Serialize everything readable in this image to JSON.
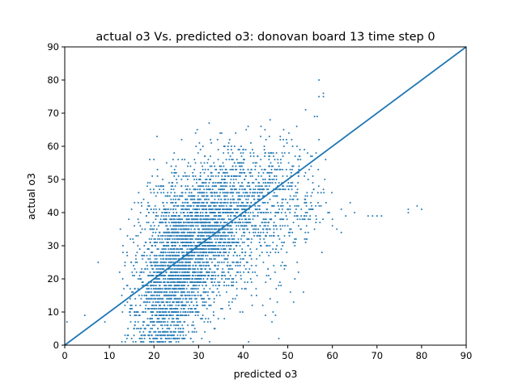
{
  "chart_data": {
    "type": "scatter",
    "title": "actual o3 Vs. predicted o3: donovan board 13 time step 0",
    "xlabel": "predicted o3",
    "ylabel": "actual o3",
    "xlim": [
      0,
      90
    ],
    "ylim": [
      0,
      90
    ],
    "xticks": [
      "0",
      "10",
      "20",
      "30",
      "40",
      "50",
      "60",
      "70",
      "80",
      "90"
    ],
    "yticks": [
      "0",
      "10",
      "20",
      "30",
      "40",
      "50",
      "60",
      "70",
      "80",
      "90"
    ],
    "grid": false,
    "legend": "none",
    "marker_color": "#1f77b4",
    "line_color": "#1f77b4",
    "reference_line": {
      "x": [
        0,
        90
      ],
      "y": [
        0,
        90
      ]
    },
    "point_clusters": [
      {
        "x_center": 22,
        "x_spread": 3.5,
        "y_center": 12,
        "y_spread": 9,
        "count": 700
      },
      {
        "x_center": 26,
        "x_spread": 4.5,
        "y_center": 24,
        "y_spread": 9,
        "count": 1100
      },
      {
        "x_center": 31,
        "x_spread": 5.5,
        "y_center": 36,
        "y_spread": 8,
        "count": 1100
      },
      {
        "x_center": 37,
        "x_spread": 6,
        "y_center": 46,
        "y_spread": 7,
        "count": 500
      },
      {
        "x_center": 45,
        "x_spread": 6,
        "y_center": 54,
        "y_spread": 6,
        "count": 150
      },
      {
        "x_center": 45,
        "x_spread": 6,
        "y_center": 38,
        "y_spread": 6,
        "count": 250
      },
      {
        "x_center": 40,
        "x_spread": 6,
        "y_center": 22,
        "y_spread": 7,
        "count": 120
      },
      {
        "x_center": 52,
        "x_spread": 4,
        "y_center": 44,
        "y_spread": 5,
        "count": 80
      }
    ],
    "points": [
      [
        0.5,
        7
      ],
      [
        4.5,
        9
      ],
      [
        7.5,
        25
      ],
      [
        9,
        7
      ],
      [
        13,
        20
      ],
      [
        14,
        27
      ],
      [
        13.5,
        12
      ],
      [
        15,
        2
      ],
      [
        16,
        33
      ],
      [
        17,
        40
      ],
      [
        19,
        42
      ],
      [
        25,
        52
      ],
      [
        48,
        2
      ],
      [
        45,
        9
      ],
      [
        43,
        15
      ],
      [
        44,
        66
      ],
      [
        52,
        66
      ],
      [
        54,
        71
      ],
      [
        56,
        69
      ],
      [
        57,
        75
      ],
      [
        57,
        80
      ],
      [
        58,
        76
      ],
      [
        58,
        75
      ],
      [
        57,
        62
      ],
      [
        58,
        47
      ],
      [
        59,
        40
      ],
      [
        60,
        38
      ],
      [
        61,
        35
      ],
      [
        62,
        34
      ],
      [
        63,
        39
      ],
      [
        64,
        43
      ],
      [
        65,
        40
      ],
      [
        68,
        39
      ],
      [
        69,
        39
      ],
      [
        70,
        39
      ],
      [
        71,
        39
      ],
      [
        77,
        41
      ],
      [
        77,
        40
      ],
      [
        79,
        42
      ],
      [
        80,
        41
      ],
      [
        56,
        35
      ],
      [
        55,
        38
      ],
      [
        60,
        36
      ],
      [
        62,
        41
      ]
    ]
  }
}
